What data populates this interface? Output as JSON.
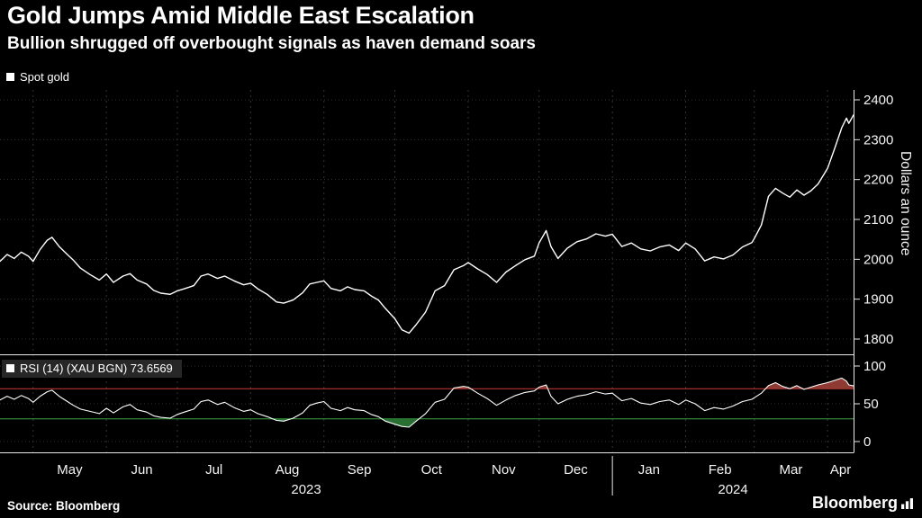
{
  "header": {
    "title": "Gold Jumps Amid Middle East Escalation",
    "subtitle": "Bullion shrugged off overbought signals as haven demand soars"
  },
  "footer": {
    "source": "Source: Bloomberg",
    "brand": "Bloomberg"
  },
  "xaxis": {
    "months": [
      "May",
      "Jun",
      "Jul",
      "Aug",
      "Sep",
      "Oct",
      "Nov",
      "Dec",
      "Jan",
      "Feb",
      "Mar",
      "Apr"
    ],
    "month_start_days": [
      14,
      45,
      75,
      106,
      137,
      167,
      198,
      228,
      259,
      290,
      319,
      350
    ],
    "total_days": 361,
    "years": [
      {
        "label": "2023",
        "start_day": 0,
        "end_day": 259
      },
      {
        "label": "2024",
        "start_day": 259,
        "end_day": 361
      }
    ],
    "year_separator_day": 259
  },
  "chart_data": [
    {
      "type": "line",
      "title": "Spot gold",
      "legend": "Spot gold",
      "ylabel": "Dollars an ounce",
      "yticks": [
        1800,
        1900,
        2000,
        2100,
        2200,
        2300,
        2400
      ],
      "ylim": [
        1770,
        2425
      ],
      "grid": true,
      "legend_position": "top-left",
      "x": [
        0,
        3,
        6,
        9,
        12,
        14,
        17,
        20,
        22,
        25,
        28,
        31,
        34,
        38,
        42,
        45,
        48,
        52,
        55,
        58,
        62,
        65,
        68,
        72,
        75,
        78,
        82,
        85,
        88,
        92,
        95,
        99,
        103,
        106,
        109,
        113,
        117,
        120,
        124,
        128,
        131,
        134,
        137,
        140,
        144,
        147,
        150,
        154,
        157,
        160,
        163,
        167,
        170,
        173,
        176,
        180,
        184,
        188,
        192,
        196,
        198,
        202,
        206,
        210,
        214,
        218,
        222,
        226,
        228,
        231,
        233,
        236,
        240,
        244,
        248,
        252,
        256,
        259,
        263,
        267,
        271,
        275,
        279,
        283,
        287,
        290,
        294,
        298,
        302,
        306,
        310,
        314,
        318,
        319,
        322,
        325,
        328,
        331,
        334,
        337,
        340,
        343,
        346,
        350,
        353,
        356,
        358,
        359,
        361
      ],
      "series": [
        {
          "name": "Spot gold",
          "color": "#ffffff",
          "values": [
            1995,
            2012,
            2002,
            2018,
            2008,
            1995,
            2025,
            2048,
            2055,
            2032,
            2015,
            1998,
            1978,
            1962,
            1948,
            1963,
            1942,
            1958,
            1964,
            1948,
            1938,
            1922,
            1915,
            1912,
            1921,
            1926,
            1934,
            1958,
            1963,
            1952,
            1958,
            1946,
            1936,
            1940,
            1926,
            1912,
            1893,
            1890,
            1898,
            1916,
            1938,
            1942,
            1946,
            1927,
            1921,
            1931,
            1924,
            1921,
            1908,
            1898,
            1877,
            1851,
            1823,
            1815,
            1836,
            1868,
            1921,
            1934,
            1974,
            1984,
            1992,
            1976,
            1962,
            1942,
            1968,
            1984,
            1999,
            2008,
            2041,
            2072,
            2032,
            2002,
            2028,
            2044,
            2051,
            2064,
            2058,
            2063,
            2032,
            2041,
            2026,
            2021,
            2031,
            2036,
            2022,
            2041,
            2026,
            1996,
            2006,
            2001,
            2011,
            2031,
            2042,
            2052,
            2086,
            2158,
            2178,
            2166,
            2156,
            2174,
            2161,
            2172,
            2189,
            2228,
            2278,
            2330,
            2354,
            2341,
            2362
          ]
        }
      ]
    },
    {
      "type": "line",
      "title": "RSI (14) (XAU BGN)",
      "legend": "RSI (14) (XAU BGN) 73.6569",
      "indicator": "RSI (14)",
      "ticker": "XAU BGN",
      "last_value": 73.6569,
      "yticks": [
        0,
        50,
        100
      ],
      "ylim": [
        -14,
        112
      ],
      "overbought_level": 70,
      "oversold_level": 30,
      "colors": {
        "line": "#ffffff",
        "overbought_line": "#cf3b34",
        "overbought_fill": "#9e4038",
        "oversold_line": "#3aa648",
        "oversold_fill": "#2e7a38"
      },
      "x": [
        0,
        3,
        6,
        9,
        12,
        14,
        17,
        20,
        22,
        25,
        28,
        31,
        34,
        38,
        42,
        45,
        48,
        52,
        55,
        58,
        62,
        65,
        68,
        72,
        75,
        78,
        82,
        85,
        88,
        92,
        95,
        99,
        103,
        106,
        109,
        113,
        117,
        120,
        124,
        128,
        131,
        134,
        137,
        140,
        144,
        147,
        150,
        154,
        157,
        160,
        163,
        167,
        170,
        173,
        176,
        180,
        184,
        188,
        192,
        196,
        198,
        202,
        206,
        210,
        214,
        218,
        222,
        226,
        228,
        231,
        233,
        236,
        240,
        244,
        248,
        252,
        256,
        259,
        263,
        267,
        271,
        275,
        279,
        283,
        287,
        290,
        294,
        298,
        302,
        306,
        310,
        314,
        318,
        319,
        322,
        325,
        328,
        331,
        334,
        337,
        340,
        343,
        346,
        350,
        353,
        356,
        358,
        359,
        361
      ],
      "series": [
        {
          "name": "RSI (14) (XAU BGN)",
          "color": "#ffffff",
          "values": [
            55,
            60,
            56,
            61,
            57,
            52,
            60,
            66,
            68,
            60,
            54,
            48,
            43,
            40,
            37,
            44,
            38,
            46,
            49,
            42,
            39,
            34,
            32,
            31,
            36,
            39,
            43,
            53,
            55,
            49,
            52,
            45,
            40,
            42,
            37,
            33,
            28,
            27,
            31,
            38,
            48,
            51,
            53,
            44,
            41,
            45,
            42,
            41,
            36,
            33,
            27,
            23,
            20,
            19,
            27,
            37,
            52,
            56,
            71,
            73,
            72,
            64,
            57,
            48,
            55,
            61,
            65,
            67,
            72,
            75,
            60,
            50,
            56,
            60,
            62,
            66,
            63,
            64,
            54,
            57,
            51,
            49,
            53,
            55,
            49,
            55,
            50,
            41,
            45,
            43,
            47,
            53,
            56,
            58,
            64,
            74,
            78,
            73,
            70,
            74,
            69,
            72,
            75,
            78,
            81,
            84,
            80,
            75,
            73.6569
          ]
        }
      ]
    }
  ]
}
